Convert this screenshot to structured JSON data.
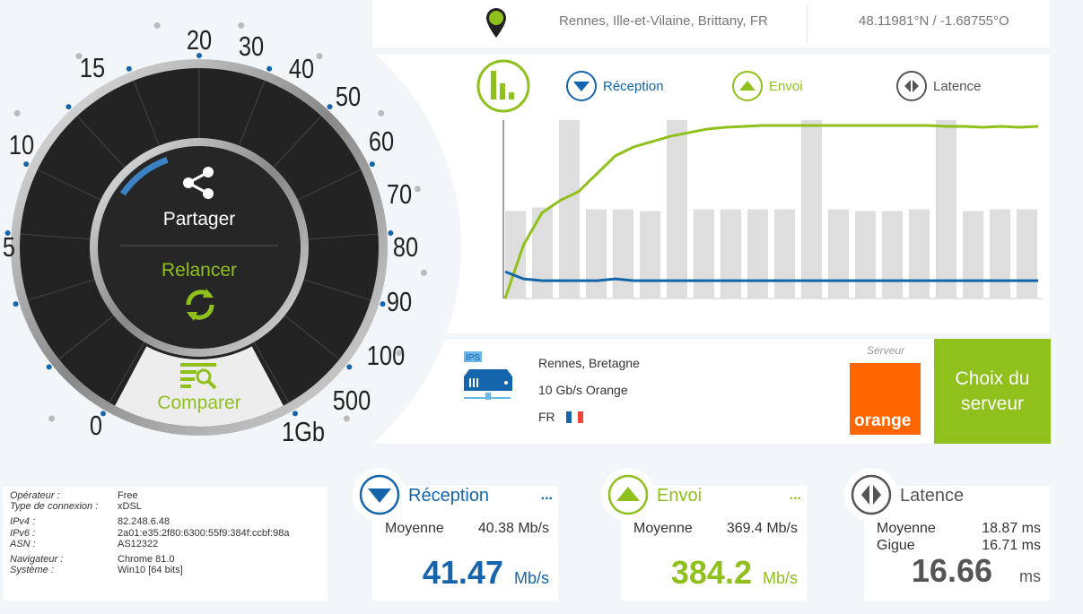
{
  "location": {
    "place": "Rennes, Ille-et-Vilaine, Brittany, FR",
    "coords": "48.11981°N / -1.68755°O",
    "icon": "map-pin-icon"
  },
  "legend": {
    "reception": "Réception",
    "envoi": "Envoi",
    "latence": "Latence"
  },
  "colors": {
    "blue": "#1565ad",
    "green": "#8fc01c",
    "grey": "#555555",
    "orange": "#ff6600",
    "bars": "#dedede"
  },
  "gauge": {
    "labels": [
      "0",
      "5",
      "10",
      "15",
      "20",
      "30",
      "40",
      "50",
      "60",
      "70",
      "80",
      "90",
      "100",
      "500",
      "1Gb"
    ],
    "share": "Partager",
    "restart": "Relancer",
    "compare": "Comparer"
  },
  "chart_data": {
    "type": "bar+line",
    "bars": [
      49,
      51,
      100,
      50,
      50,
      49,
      100,
      50,
      50,
      50,
      50,
      100,
      50,
      49,
      49,
      50,
      100,
      49,
      50,
      50
    ],
    "series": [
      {
        "name": "Envoi",
        "values": [
          0,
          30,
          48,
          55,
          60,
          70,
          80,
          85,
          88,
          91,
          93,
          95,
          96,
          96.5,
          97,
          97,
          97,
          97,
          97,
          97,
          97,
          97,
          97,
          97,
          96.5,
          96.5,
          96,
          96.5,
          96,
          96.5
        ]
      },
      {
        "name": "Réception",
        "values": [
          15,
          11,
          10,
          10,
          10,
          10,
          11,
          10,
          10,
          10,
          10,
          10,
          10,
          10,
          10,
          10,
          10,
          10,
          10,
          10,
          10,
          10,
          10,
          10,
          10,
          10,
          10,
          10,
          10,
          10
        ]
      }
    ],
    "ylim": [
      0,
      100
    ]
  },
  "server": {
    "city": "Rennes, Bretagne",
    "provider": "10 Gb/s Orange",
    "country": "FR",
    "label": "Serveur",
    "logo": "orange",
    "ips": "IPS",
    "choose": "Choix du serveur"
  },
  "info": [
    {
      "k": "Opérateur :",
      "v": "Free"
    },
    {
      "k": "Type de connexion :",
      "v": "xDSL"
    },
    {
      "k": "IPv4 :",
      "v": "82.248.6.48"
    },
    {
      "k": "IPv6 :",
      "v": "2a01:e35:2f80:6300:55f9:384f:ccbf:98a"
    },
    {
      "k": "ASN :",
      "v": "AS12322"
    },
    {
      "k": "Navigateur :",
      "v": "Chrome 81.0"
    },
    {
      "k": "Système :",
      "v": "Win10 [64 bits]"
    }
  ],
  "stats": {
    "reception": {
      "title": "Réception",
      "more": "...",
      "avg_label": "Moyenne",
      "avg": "40.38 Mb/s",
      "value": "41.47",
      "unit": "Mb/s"
    },
    "envoi": {
      "title": "Envoi",
      "more": "...",
      "avg_label": "Moyenne",
      "avg": "369.4 Mb/s",
      "value": "384.2",
      "unit": "Mb/s"
    },
    "latence": {
      "title": "Latence",
      "avg_label": "Moyenne",
      "avg": "18.87 ms",
      "jitter_label": "Gigue",
      "jitter": "16.71 ms",
      "value": "16.66",
      "unit": "ms"
    }
  }
}
